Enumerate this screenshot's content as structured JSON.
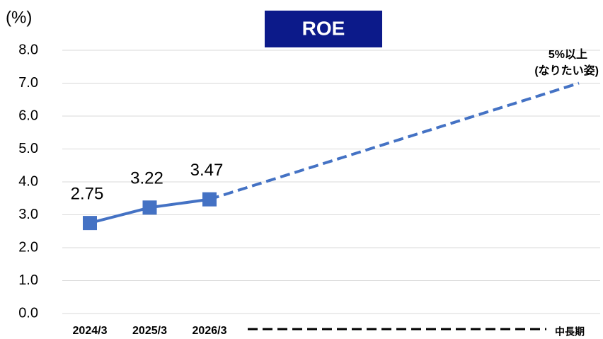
{
  "chart_data": {
    "type": "line",
    "title": "ROE",
    "y_unit_label": "(%)",
    "categories": [
      "2024/3",
      "2025/3",
      "2026/3",
      "中長期"
    ],
    "series": [
      {
        "color": "#4472c4",
        "values": [
          2.75,
          3.22,
          3.47,
          7.0
        ],
        "projected": [
          false,
          false,
          false,
          true
        ]
      }
    ],
    "value_labels": [
      "2.75",
      "3.22",
      "3.47",
      null
    ],
    "annotation": [
      "5%以上",
      "(なりたい姿)"
    ],
    "ylim": [
      0,
      8
    ],
    "yticks": [
      {
        "value": 0,
        "label": "0.0"
      },
      {
        "value": 1,
        "label": "1.0"
      },
      {
        "value": 2,
        "label": "2.0"
      },
      {
        "value": 3,
        "label": "3.0"
      },
      {
        "value": 4,
        "label": "4.0"
      },
      {
        "value": 5,
        "label": "5.0"
      },
      {
        "value": 6,
        "label": "6.0"
      },
      {
        "value": 7,
        "label": "7.0"
      },
      {
        "value": 8,
        "label": "8.0"
      }
    ],
    "grid": true,
    "title_box_color": "#0c1a8a"
  }
}
